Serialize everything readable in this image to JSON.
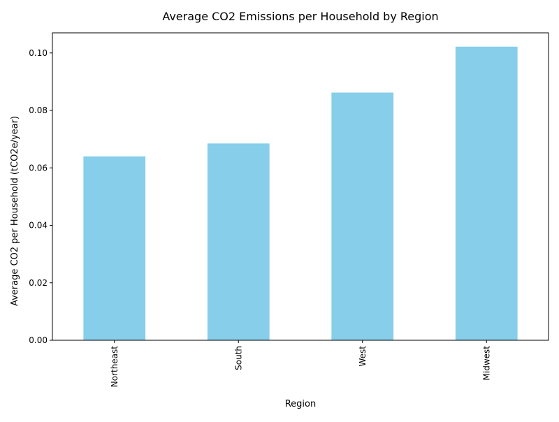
{
  "chart_data": {
    "type": "bar",
    "title": "Average CO2 Emissions per Household by Region",
    "xlabel": "Region",
    "ylabel": "Average CO2 per Household (tCO2e/year)",
    "categories": [
      "Northeast",
      "South",
      "West",
      "Midwest"
    ],
    "values": [
      0.064,
      0.0685,
      0.0862,
      0.1022
    ],
    "ylim": [
      0,
      0.107
    ],
    "yticks": [
      0.0,
      0.02,
      0.04,
      0.06,
      0.08,
      0.1
    ],
    "ytick_labels": [
      "0.00",
      "0.02",
      "0.04",
      "0.06",
      "0.08",
      "0.10"
    ],
    "bar_color": "#87CEEB",
    "grid": false,
    "legend": "none"
  }
}
